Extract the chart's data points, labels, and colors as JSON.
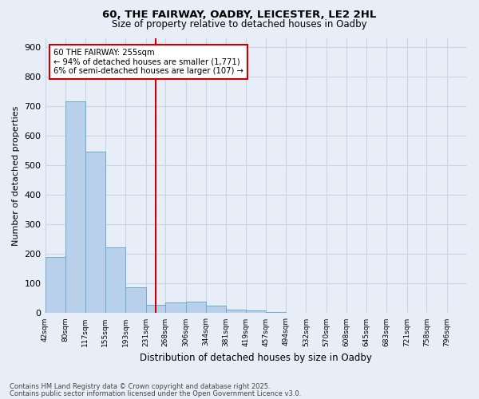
{
  "title1": "60, THE FAIRWAY, OADBY, LEICESTER, LE2 2HL",
  "title2": "Size of property relative to detached houses in Oadby",
  "xlabel": "Distribution of detached houses by size in Oadby",
  "ylabel": "Number of detached properties",
  "categories": [
    "42sqm",
    "80sqm",
    "117sqm",
    "155sqm",
    "193sqm",
    "231sqm",
    "268sqm",
    "306sqm",
    "344sqm",
    "381sqm",
    "419sqm",
    "457sqm",
    "494sqm",
    "532sqm",
    "570sqm",
    "608sqm",
    "645sqm",
    "683sqm",
    "721sqm",
    "758sqm",
    "796sqm"
  ],
  "values": [
    190,
    715,
    545,
    222,
    88,
    27,
    35,
    38,
    25,
    13,
    8,
    3,
    2,
    1,
    1,
    1,
    0,
    0,
    0,
    0,
    0
  ],
  "bar_color": "#b8d0ea",
  "bar_edge_color": "#6aaad4",
  "property_line_color": "#cc0000",
  "annotation_text": "60 THE FAIRWAY: 255sqm\n← 94% of detached houses are smaller (1,771)\n6% of semi-detached houses are larger (107) →",
  "annotation_box_color": "#ffffff",
  "annotation_box_edge": "#cc0000",
  "ylim": [
    0,
    930
  ],
  "yticks": [
    0,
    100,
    200,
    300,
    400,
    500,
    600,
    700,
    800,
    900
  ],
  "grid_color": "#c8d4e8",
  "background_color": "#e8eef8",
  "footer1": "Contains HM Land Registry data © Crown copyright and database right 2025.",
  "footer2": "Contains public sector information licensed under the Open Government Licence v3.0."
}
